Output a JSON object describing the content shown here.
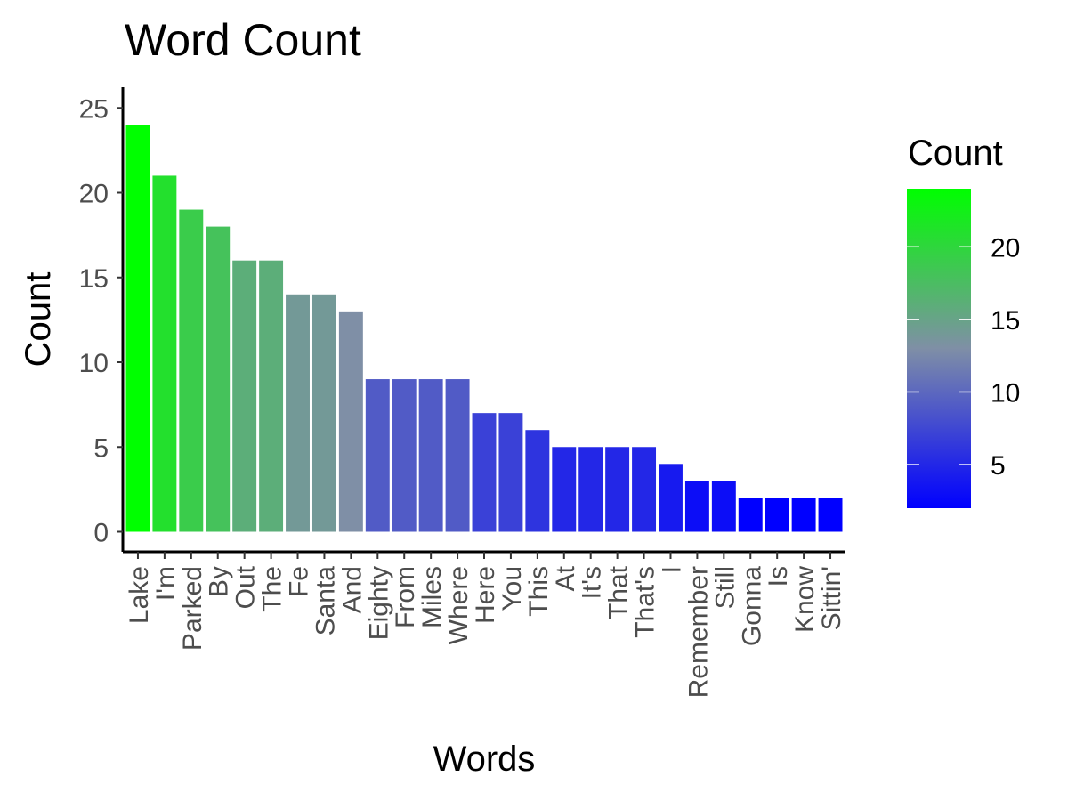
{
  "chart_data": {
    "type": "bar",
    "title": "Word Count",
    "xlabel": "Words",
    "ylabel": "Count",
    "categories": [
      "Lake",
      "I'm",
      "Parked",
      "By",
      "Out",
      "The",
      "Fe",
      "Santa",
      "And",
      "Eighty",
      "From",
      "Miles",
      "Where",
      "Here",
      "You",
      "This",
      "At",
      "It's",
      "That",
      "That's",
      "I",
      "Remember",
      "Still",
      "Gonna",
      "Is",
      "Know",
      "Sittin'"
    ],
    "values": [
      24,
      21,
      19,
      18,
      16,
      16,
      14,
      14,
      13,
      9,
      9,
      9,
      9,
      7,
      7,
      6,
      5,
      5,
      5,
      5,
      4,
      3,
      3,
      2,
      2,
      2,
      2
    ],
    "ylim": [
      0,
      25
    ],
    "yticks": [
      0,
      5,
      10,
      15,
      20,
      25
    ],
    "grid": false,
    "legend": {
      "title": "Count",
      "placement": "right",
      "type": "gradient",
      "range": [
        2,
        24
      ],
      "ticks": [
        5,
        10,
        15,
        20
      ]
    },
    "colors": {
      "low": "#0000ff",
      "mid": "#7f8fa6",
      "high": "#00ff00"
    }
  }
}
